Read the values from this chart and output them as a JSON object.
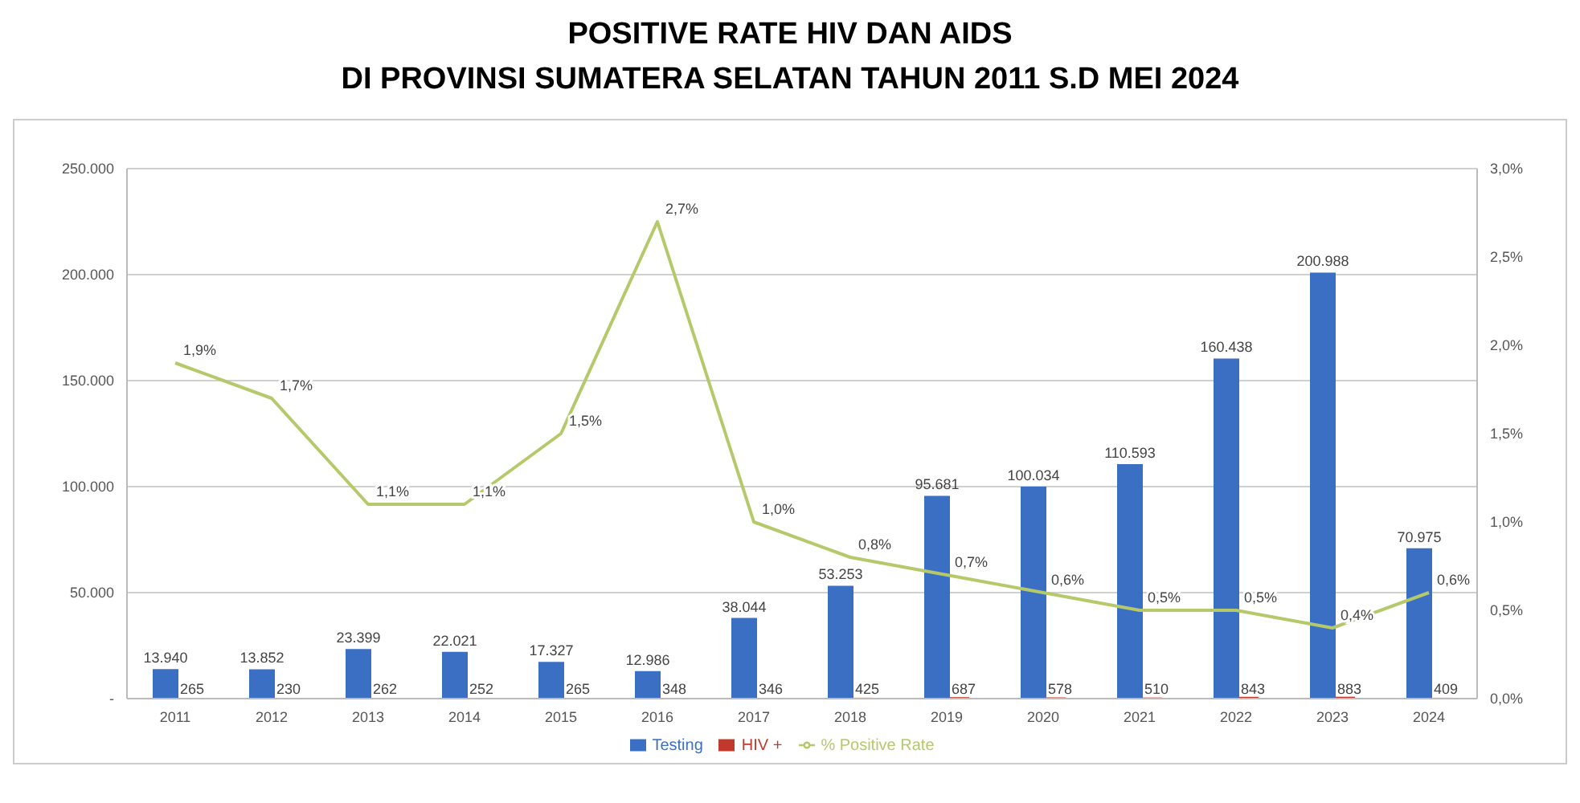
{
  "chart_data": {
    "type": "bar",
    "title": "POSITIVE RATE HIV DAN AIDS\nDI PROVINSI SUMATERA SELATAN TAHUN 2011 S.D MEI 2024",
    "categories": [
      "2011",
      "2012",
      "2013",
      "2014",
      "2015",
      "2016",
      "2017",
      "2018",
      "2019",
      "2020",
      "2021",
      "2022",
      "2023",
      "2024"
    ],
    "series": [
      {
        "name": "Testing",
        "color": "#3a6fc4",
        "values": [
          13940,
          13852,
          23399,
          22021,
          17327,
          12986,
          38044,
          53253,
          95681,
          100034,
          110593,
          160438,
          200988,
          70975
        ],
        "value_labels": [
          "13.940",
          "13.852",
          "23.399",
          "22.021",
          "17.327",
          "12.986",
          "38.044",
          "53.253",
          "95.681",
          "100.034",
          "110.593",
          "160.438",
          "200.988",
          "70.975"
        ]
      },
      {
        "name": "HIV +",
        "color": "#c0392b",
        "values": [
          265,
          230,
          262,
          252,
          265,
          348,
          346,
          425,
          687,
          578,
          510,
          843,
          883,
          409
        ],
        "value_labels": [
          "265",
          "230",
          "262",
          "252",
          "265",
          "348",
          "346",
          "425",
          "687",
          "578",
          "510",
          "843",
          "883",
          "409"
        ]
      },
      {
        "name": "% Positive Rate",
        "type": "line",
        "axis": "y2",
        "color": "#b5c96a",
        "values": [
          1.9,
          1.7,
          1.1,
          1.1,
          1.5,
          2.7,
          1.0,
          0.8,
          0.7,
          0.6,
          0.5,
          0.5,
          0.4,
          0.6
        ],
        "value_labels": [
          "1,9%",
          "1,7%",
          "1,1%",
          "1,1%",
          "1,5%",
          "2,7%",
          "1,0%",
          "0,8%",
          "0,7%",
          "0,6%",
          "0,5%",
          "0,5%",
          "0,4%",
          "0,6%"
        ]
      }
    ],
    "ylim": [
      0,
      250000
    ],
    "yticks": [
      {
        "value": 0,
        "label": "-"
      },
      {
        "value": 50000,
        "label": "50.000"
      },
      {
        "value": 100000,
        "label": "100.000"
      },
      {
        "value": 150000,
        "label": "150.000"
      },
      {
        "value": 200000,
        "label": "200.000"
      },
      {
        "value": 250000,
        "label": "250.000"
      }
    ],
    "y2lim": [
      0,
      3
    ],
    "y2ticks": [
      {
        "value": 0,
        "label": "0,0%"
      },
      {
        "value": 0.5,
        "label": "0,5%"
      },
      {
        "value": 1,
        "label": "1,0%"
      },
      {
        "value": 1.5,
        "label": "1,5%"
      },
      {
        "value": 2,
        "label": "2,0%"
      },
      {
        "value": 2.5,
        "label": "2,5%"
      },
      {
        "value": 3,
        "label": "3,0%"
      }
    ],
    "grid": "y",
    "legend": "bottom",
    "marker": "none"
  }
}
